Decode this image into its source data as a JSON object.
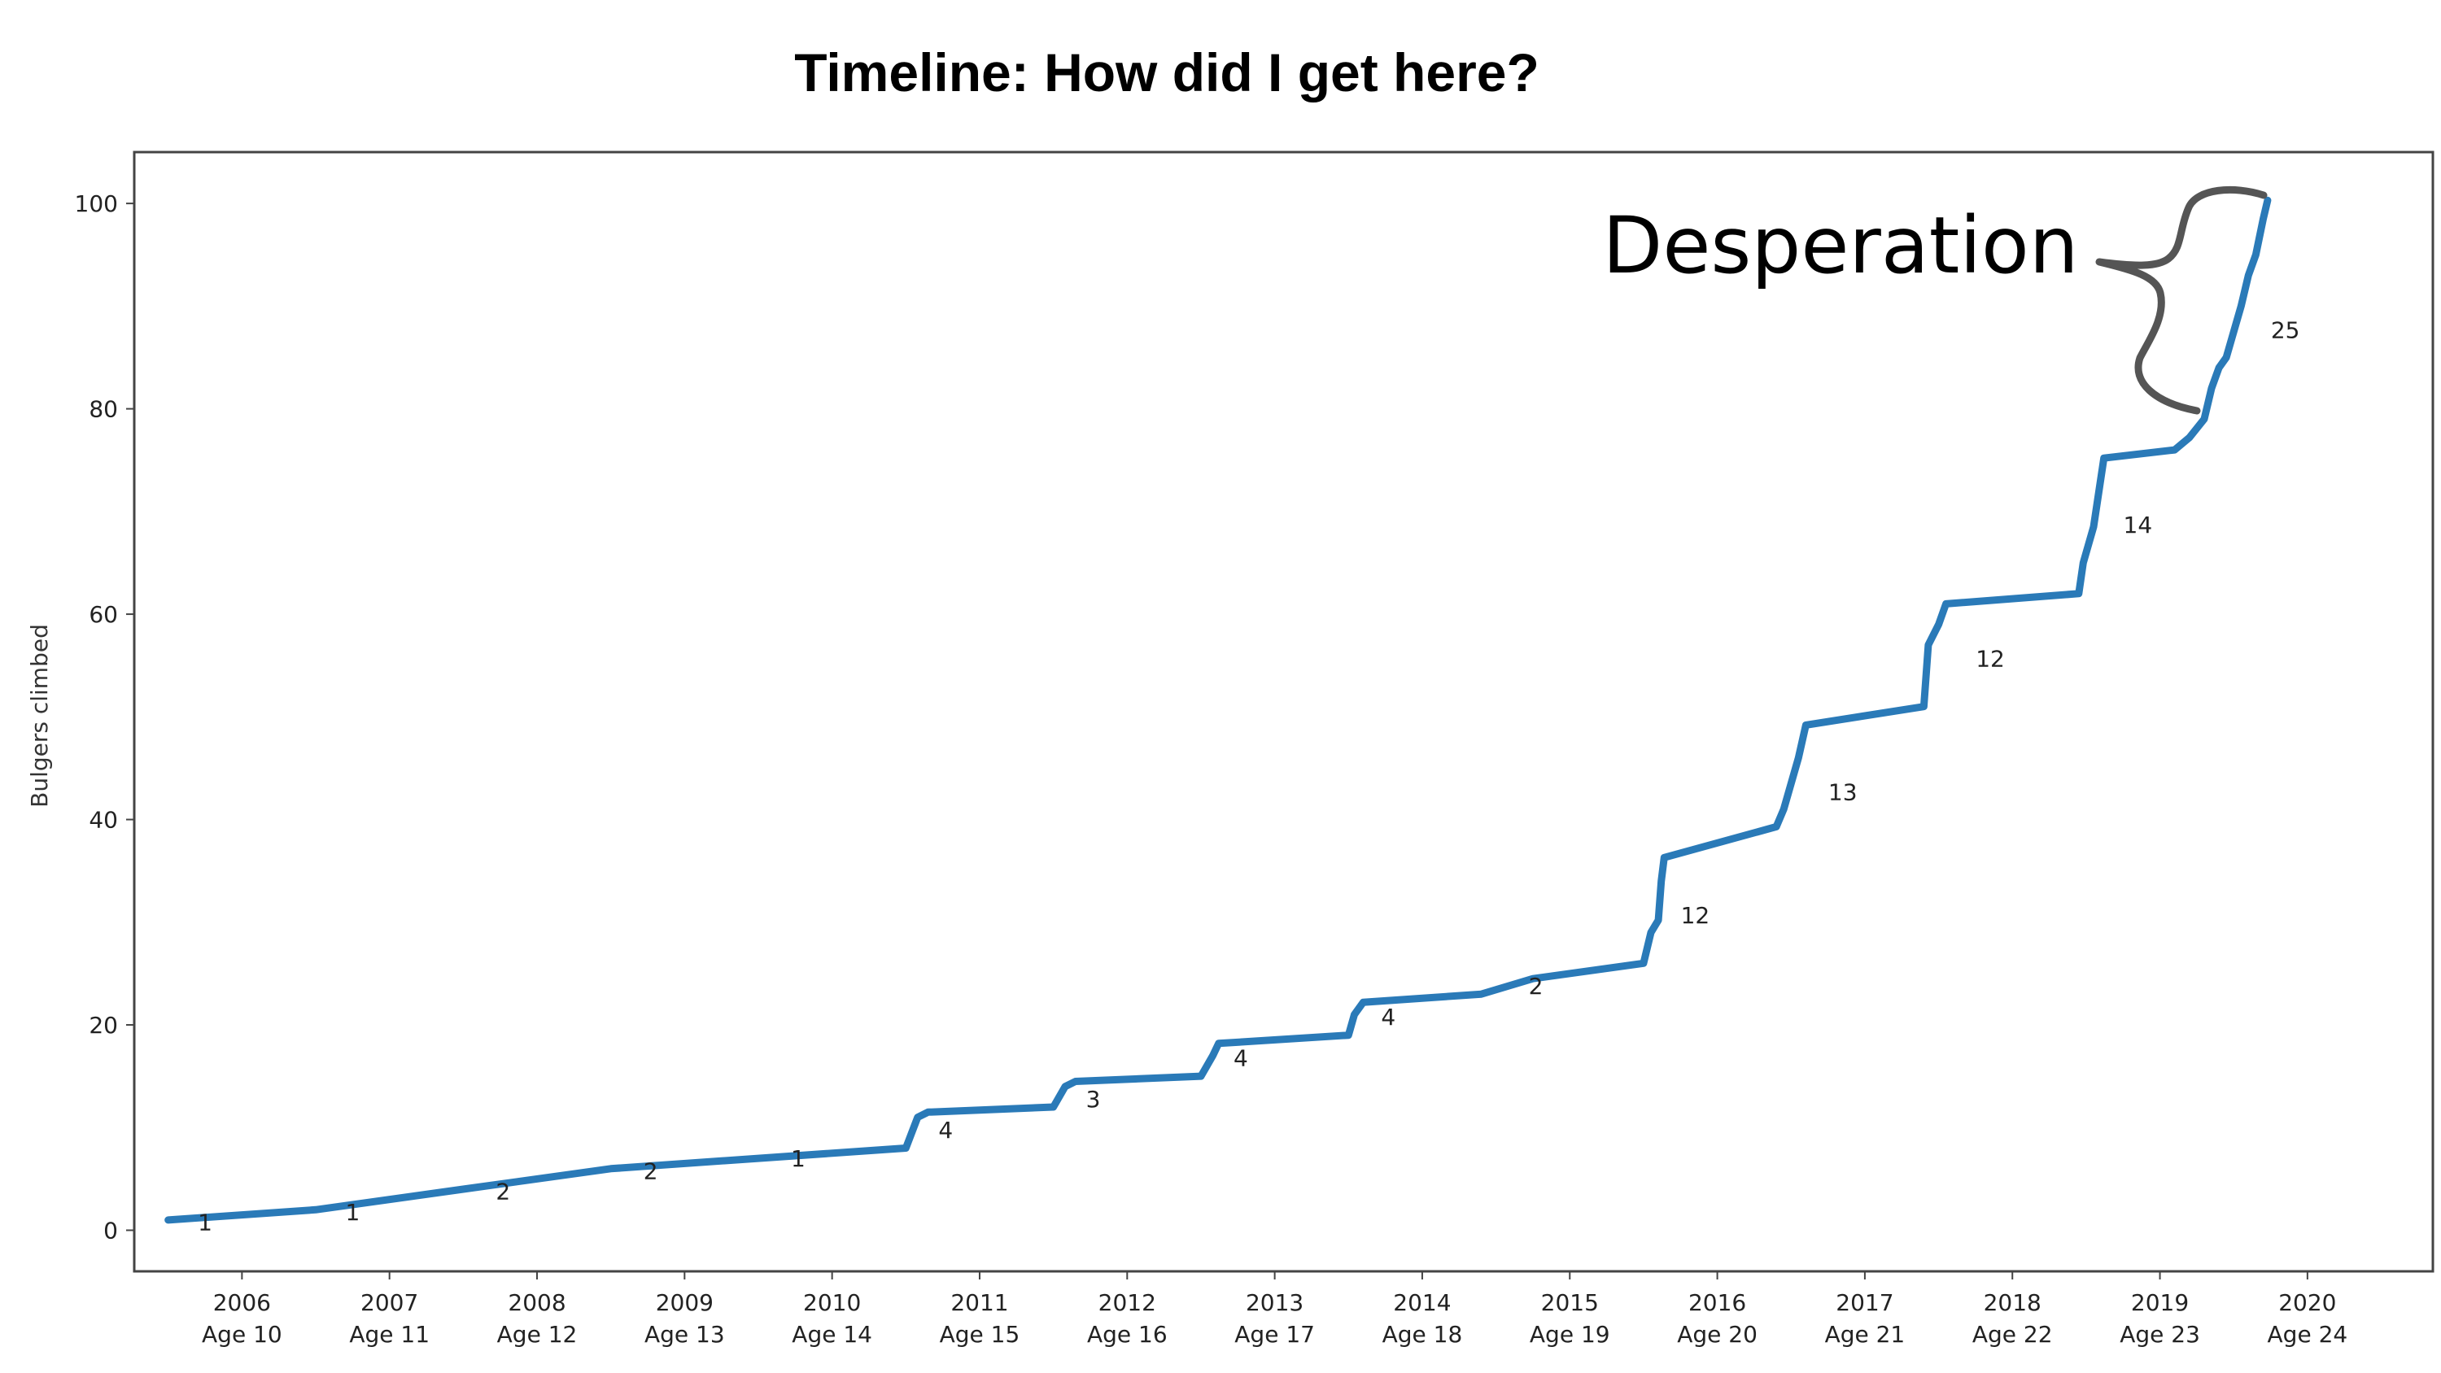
{
  "chart_data": {
    "type": "line",
    "title": "Timeline: How did I get here?",
    "ylabel": "Bulgers climbed",
    "xlabel": "",
    "xlim": [
      2005.27,
      2020.85
    ],
    "ylim": [
      -4,
      105
    ],
    "yticks": [
      0,
      20,
      40,
      60,
      80,
      100
    ],
    "xticks": [
      {
        "year": 2006,
        "label": "2006",
        "age": "Age 10"
      },
      {
        "year": 2007,
        "label": "2007",
        "age": "Age 11"
      },
      {
        "year": 2008,
        "label": "2008",
        "age": "Age 12"
      },
      {
        "year": 2009,
        "label": "2009",
        "age": "Age 13"
      },
      {
        "year": 2010,
        "label": "2010",
        "age": "Age 14"
      },
      {
        "year": 2011,
        "label": "2011",
        "age": "Age 15"
      },
      {
        "year": 2012,
        "label": "2012",
        "age": "Age 16"
      },
      {
        "year": 2013,
        "label": "2013",
        "age": "Age 17"
      },
      {
        "year": 2014,
        "label": "2014",
        "age": "Age 18"
      },
      {
        "year": 2015,
        "label": "2015",
        "age": "Age 19"
      },
      {
        "year": 2016,
        "label": "2016",
        "age": "Age 20"
      },
      {
        "year": 2017,
        "label": "2017",
        "age": "Age 21"
      },
      {
        "year": 2018,
        "label": "2018",
        "age": "Age 22"
      },
      {
        "year": 2019,
        "label": "2019",
        "age": "Age 23"
      },
      {
        "year": 2020,
        "label": "2020",
        "age": "Age 24"
      }
    ],
    "series": [
      {
        "color": "#2a7ab8",
        "x": [
          2005.5,
          2006.5,
          2007.5,
          2008.5,
          2009.5,
          2010.5,
          2010.58,
          2010.65,
          2011.5,
          2011.58,
          2011.65,
          2012.5,
          2012.58,
          2012.62,
          2013.5,
          2013.54,
          2013.6,
          2014.4,
          2014.75,
          2015.5,
          2015.55,
          2015.6,
          2015.62,
          2015.64,
          2016.4,
          2016.45,
          2016.55,
          2016.6,
          2017.4,
          2017.43,
          2017.5,
          2017.55,
          2018.45,
          2018.48,
          2018.55,
          2018.62,
          2019.1,
          2019.2,
          2019.3,
          2019.35,
          2019.4,
          2019.45,
          2019.55,
          2019.6,
          2019.65,
          2019.7,
          2019.73
        ],
        "y": [
          1,
          2,
          4,
          6,
          7,
          8,
          11,
          11.5,
          12,
          14,
          14.5,
          15,
          17,
          18.2,
          19,
          21,
          22.2,
          23,
          24.5,
          26,
          29,
          30.2,
          34,
          36.3,
          39.3,
          41,
          46,
          49.2,
          51,
          57,
          59,
          61,
          62,
          65,
          68.5,
          75.2,
          76,
          77.2,
          79,
          82,
          84,
          85,
          90,
          93,
          95,
          98.5,
          100.3
        ]
      }
    ],
    "data_labels": [
      {
        "x": 2005.75,
        "y": 0.8,
        "text": "1"
      },
      {
        "x": 2006.75,
        "y": 1.8,
        "text": "1"
      },
      {
        "x": 2007.77,
        "y": 3.8,
        "text": "2"
      },
      {
        "x": 2008.77,
        "y": 5.8,
        "text": "2"
      },
      {
        "x": 2009.77,
        "y": 7.0,
        "text": "1"
      },
      {
        "x": 2010.77,
        "y": 9.8,
        "text": "4"
      },
      {
        "x": 2011.77,
        "y": 12.8,
        "text": "3"
      },
      {
        "x": 2012.77,
        "y": 16.8,
        "text": "4"
      },
      {
        "x": 2013.77,
        "y": 20.8,
        "text": "4"
      },
      {
        "x": 2014.77,
        "y": 23.8,
        "text": "2"
      },
      {
        "x": 2015.85,
        "y": 30.7,
        "text": "12"
      },
      {
        "x": 2016.85,
        "y": 42.7,
        "text": "13"
      },
      {
        "x": 2017.85,
        "y": 55.7,
        "text": "12"
      },
      {
        "x": 2018.85,
        "y": 68.7,
        "text": "14"
      },
      {
        "x": 2019.85,
        "y": 87.7,
        "text": "25"
      }
    ],
    "annotation": {
      "text": "Desperation"
    },
    "grid": false
  }
}
